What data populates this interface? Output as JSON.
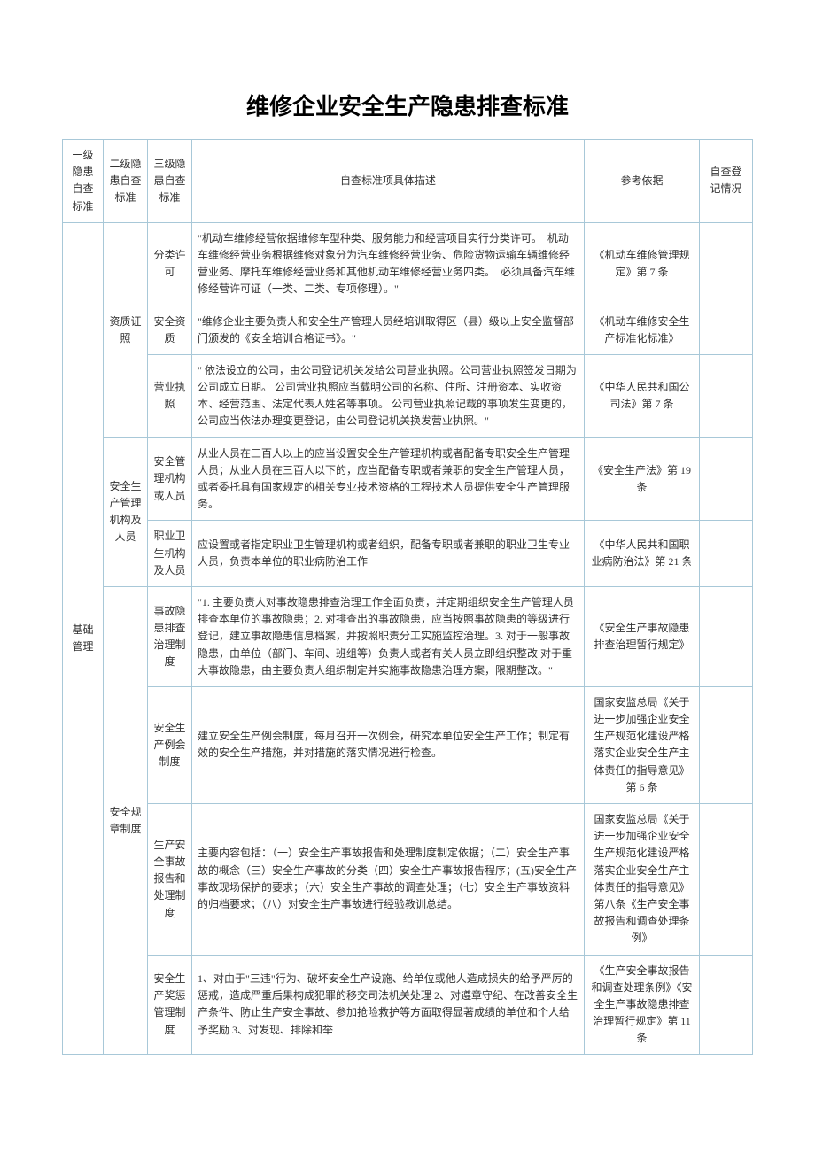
{
  "title": "维修企业安全生产隐患排查标准",
  "headers": {
    "h1": "一级隐患自查标准",
    "h2": "二级隐患自查标准",
    "h3": "三级隐患自查标准",
    "h4": "自查标准项具体描述",
    "h5": "参考依据",
    "h6": "自查登记情况"
  },
  "lvl1": "基础管理",
  "g1": {
    "lvl2": "资质证照",
    "r1": {
      "lvl3": "分类许可",
      "desc": "\"机动车维修经营依据维修车型种类、服务能力和经营项目实行分类许可。　机动车维修经营业务根据维修对象分为汽车维修经营业务、危险货物运输车辆维修经营业务、摩托车维修经营业务和其他机动车维修经营业务四类。　必须具备汽车维修经营许可证（一类、二类、专项修理）。\"",
      "ref": "《机动车维修管理规定》第 7 条"
    },
    "r2": {
      "lvl3": "安全资质",
      "desc": "\"维修企业主要负责人和安全生产管理人员经培训取得区（县）级以上安全监督部门颁发的《安全培训合格证书》。\"",
      "ref": "《机动车维修安全生产标准化标准》"
    },
    "r3": {
      "lvl3": "营业执照",
      "desc": "\" 依法设立的公司，由公司登记机关发给公司营业执照。公司营业执照签发日期为公司成立日期。 公司营业执照应当载明公司的名称、住所、注册资本、实收资本、经营范围、法定代表人姓名等事项。 公司营业执照记载的事项发生变更的，公司应当依法办理变更登记，由公司登记机关换发营业执照。\"",
      "ref": "《中华人民共和国公司法》第 7 条"
    }
  },
  "g2": {
    "lvl2": "安全生产管理机构及人员",
    "r1": {
      "lvl3": "安全管理机构或人员",
      "desc": "从业人员在三百人以上的应当设置安全生产管理机构或者配备专职安全生产管理人员；从业人员在三百人以下的，应当配备专职或者兼职的安全生产管理人员，或者委托具有国家规定的相关专业技术资格的工程技术人员提供安全生产管理服务。",
      "ref": "《安全生产法》第 19 条"
    },
    "r2": {
      "lvl3": "职业卫生机构及人员",
      "desc": "应设置或者指定职业卫生管理机构或者组织，配备专职或者兼职的职业卫生专业人员，负责本单位的职业病防治工作",
      "ref": "《中华人民共和国职业病防治法》第 21 条"
    }
  },
  "g3": {
    "lvl2": "安全规章制度",
    "r1": {
      "lvl3": "事故隐患排查治理制度",
      "desc": "\"1. 主要负责人对事故隐患排查治理工作全面负责，并定期组织安全生产管理人员排查本单位的事故隐患；2. 对排查出的事故隐患，应当按照事故隐患的等级进行登记，建立事故隐患信息档案，并按照职责分工实施监控治理。3. 对于一般事故隐患，由单位（部门、车间、班组等）负责人或者有关人员立即组织整改 对于重大事故隐患，由主要负责人组织制定并实施事故隐患治理方案，限期整改。\"",
      "ref": "《安全生产事故隐患排查治理暂行规定》"
    },
    "r2": {
      "lvl3": "安全生产例会制度",
      "desc": "建立安全生产例会制度，每月召开一次例会，研究本单位安全生产工作；制定有效的安全生产措施，并对措施的落实情况进行检查。",
      "ref": "国家安监总局《关于进一步加强企业安全生产规范化建设严格落实企业安全生产主体责任的指导意见》第 6 条"
    },
    "r3": {
      "lvl3": "生产安全事故报告和处理制度",
      "desc": "主要内容包括：（一）安全生产事故报告和处理制度制定依据；（二）安全生产事故的概念（三）安全生产事故的分类（四）安全生产事故报告程序；(五)安全生产事故现场保护的要求；（六）安全生产事故的调查处理；（七）安全生产事故资料的归档要求；（八）对安全生产事故进行经验教训总结。",
      "ref": "国家安监总局《关于进一步加强企业安全生产规范化建设严格落实企业安全生产主体责任的指导意见》第八条《生产安全事故报告和调查处理条例》"
    },
    "r4": {
      "lvl3": "安全生产奖惩管理制度",
      "desc": "1、对由于\"三违\"行为、破坏安全生产设施、给单位或他人造成损失的给予严厉的惩戒，造成严重后果构成犯罪的移交司法机关处理 2、对遵章守纪、在改善安全生产条件、防止生产安全事故、参加抢险救护等方面取得显著成绩的单位和个人给予奖励 3、对发现、排除和举",
      "ref": "《生产安全事故报告和调查处理条例》《安全生产事故隐患排查治理暂行规定》第 11 条"
    }
  }
}
